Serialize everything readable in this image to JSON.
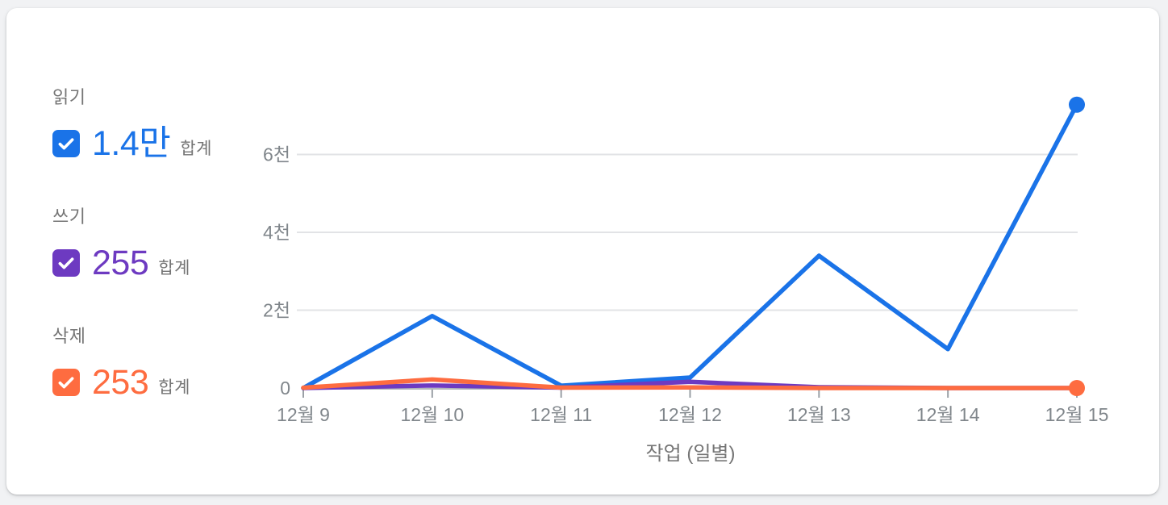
{
  "legend": {
    "items": [
      {
        "label": "읽기",
        "value": "1.4만",
        "suffix": "합계",
        "color": "#1a73e8",
        "checked": true
      },
      {
        "label": "쓰기",
        "value": "255",
        "suffix": "합계",
        "color": "#6d3ac1",
        "checked": true
      },
      {
        "label": "삭제",
        "value": "253",
        "suffix": "합계",
        "color": "#fe6c40",
        "checked": true
      }
    ]
  },
  "chart_data": {
    "type": "line",
    "title": "",
    "xlabel": "작업 (일별)",
    "ylabel": "",
    "categories": [
      "12월 9",
      "12월 10",
      "12월 11",
      "12월 12",
      "12월 13",
      "12월 14",
      "12월 15"
    ],
    "series": [
      {
        "name": "읽기",
        "color": "#1a73e8",
        "values": [
          0,
          1850,
          60,
          270,
          3400,
          1000,
          7280
        ],
        "total_label": "1.4만",
        "end_dot": true
      },
      {
        "name": "쓰기",
        "color": "#6d3ac1",
        "values": [
          0,
          65,
          10,
          160,
          20,
          0,
          0
        ],
        "total_label": "255",
        "end_dot": false
      },
      {
        "name": "삭제",
        "color": "#fe6c40",
        "values": [
          8,
          220,
          10,
          15,
          0,
          0,
          0
        ],
        "total_label": "253",
        "end_dot": true
      }
    ],
    "yticks": [
      {
        "value": 0,
        "label": "0"
      },
      {
        "value": 2000,
        "label": "2천"
      },
      {
        "value": 4000,
        "label": "4천"
      },
      {
        "value": 6000,
        "label": "6천"
      }
    ],
    "ylim": [
      0,
      7600
    ],
    "grid": true,
    "legend_position": "left",
    "colors": {
      "grid_line": "#e2e3e6",
      "axis_line": "#b3b6ba",
      "tick_mark": "#9aa0a6",
      "tick_label": "#80868b",
      "axis_title": "#757575"
    }
  }
}
